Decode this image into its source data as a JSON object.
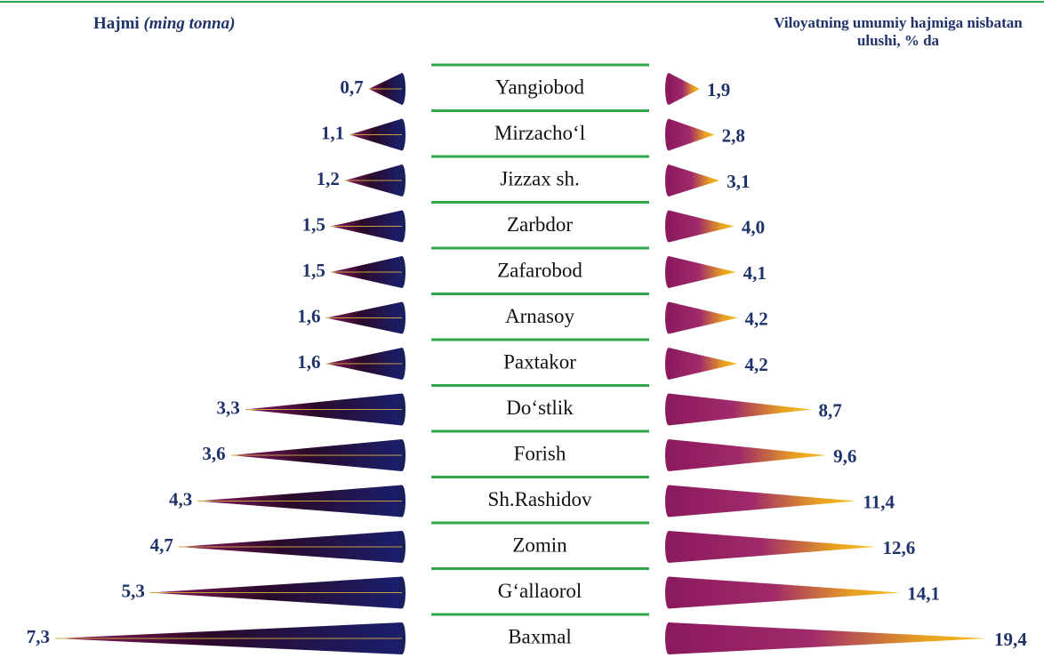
{
  "chart_data": {
    "type": "cone-bar",
    "categories": [
      "Yangiobod",
      "Mirzacho‘l",
      "Jizzax sh.",
      "Zarbdor",
      "Zafarobod",
      "Arnasoy",
      "Paxtakor",
      "Do‘stlik",
      "Forish",
      "Sh.Rashidov",
      "Zomin",
      "G‘allaorol",
      "Baxmal"
    ],
    "series": [
      {
        "name": "Hajmi",
        "name_note": "(ming tonna)",
        "color": "#1a1f5e",
        "values": [
          0.7,
          1.1,
          1.2,
          1.5,
          1.5,
          1.6,
          1.6,
          3.3,
          3.6,
          4.3,
          4.7,
          5.3,
          7.3
        ],
        "value_labels": [
          "0,7",
          "1,1",
          "1,2",
          "1,5",
          "1,5",
          "1,6",
          "1,6",
          "3,3",
          "3,6",
          "4,3",
          "4,7",
          "5,3",
          "7,3"
        ]
      },
      {
        "name": "Viloyatning umumiy hajmiga nisbatan ulushi, % da",
        "color": "#8b1a5e",
        "values": [
          1.9,
          2.8,
          3.1,
          4.0,
          4.1,
          4.2,
          4.2,
          8.7,
          9.6,
          11.4,
          12.6,
          14.1,
          19.4
        ],
        "value_labels": [
          "1,9",
          "2,8",
          "3,1",
          "4,0",
          "4,1",
          "4,2",
          "4,2",
          "8,7",
          "9,6",
          "11,4",
          "12,6",
          "14,1",
          "19,4"
        ]
      }
    ]
  }
}
